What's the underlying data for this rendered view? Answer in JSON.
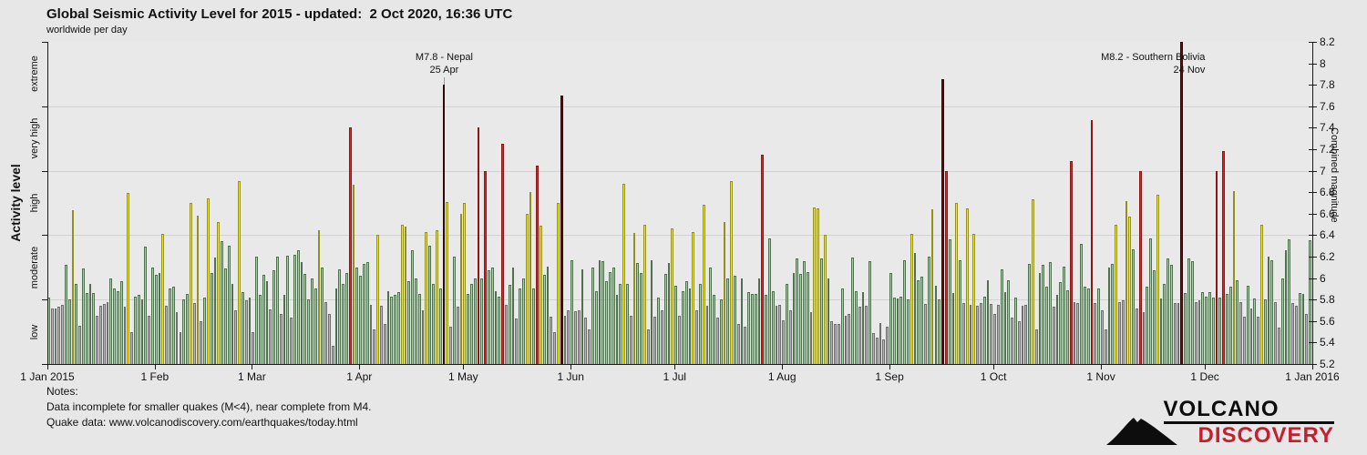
{
  "title": "Global Seismic Activity Level for 2015 - updated:  2 Oct 2020, 16:36 UTC",
  "subtitle": "worldwide per day",
  "notes": {
    "heading": "Notes:",
    "line1": "Data incomplete for smaller quakes (M<4), near complete from M4.",
    "line2": "Quake data: www.volcanodiscovery.com/earthquakes/today.html"
  },
  "logo": {
    "line1": "VOLCANO",
    "line2": "DISCOVERY"
  },
  "chart_data": {
    "type": "bar",
    "title": "Global Seismic Activity Level for 2015",
    "x_axis": {
      "labels": [
        "1 Jan 2015",
        "1 Feb",
        "1 Mar",
        "1 Apr",
        "1 May",
        "1 Jun",
        "1 Jul",
        "1 Aug",
        "1 Sep",
        "1 Oct",
        "1 Nov",
        "1 Dec",
        "1 Jan 2016"
      ],
      "tick_days": [
        0,
        31,
        59,
        90,
        120,
        151,
        181,
        212,
        243,
        273,
        304,
        334,
        365
      ]
    },
    "left_axis": {
      "title": "Activity level",
      "band_labels": [
        "low",
        "moderate",
        "high",
        "very high",
        "extreme"
      ]
    },
    "right_axis": {
      "title": "Combined magnitude",
      "min": 5.2,
      "max": 8.2,
      "tick_step": 0.2
    },
    "gridlines": [
      5.8,
      6.4,
      7.0,
      7.6
    ],
    "left_tick_values": [
      5.2,
      5.8,
      6.4,
      7.0,
      7.6,
      8.2
    ],
    "grid": true,
    "bands": [
      {
        "label": "low",
        "max": 5.8,
        "fill": "#b5b5b5",
        "border": "#6f6f6f"
      },
      {
        "label": "moderate",
        "max": 6.4,
        "fill": "#9cd89c",
        "border": "#507150"
      },
      {
        "label": "high",
        "max": 7.0,
        "fill": "#f4f000",
        "border": "#94901a"
      },
      {
        "label": "very high",
        "max": 7.6,
        "fill": "#e02525",
        "border": "#8c1616"
      },
      {
        "label": "extreme",
        "max": 8.2,
        "fill": "#5e1111",
        "border": "#2f0808"
      }
    ],
    "series_name": "combined magnitude per day",
    "values": [
      5.82,
      5.72,
      5.72,
      5.73,
      5.75,
      6.12,
      5.8,
      6.63,
      5.95,
      5.56,
      6.09,
      5.86,
      5.95,
      5.86,
      5.65,
      5.74,
      5.76,
      5.78,
      6.0,
      5.9,
      5.88,
      5.97,
      5.73,
      6.79,
      5.5,
      5.83,
      5.84,
      5.8,
      6.29,
      5.65,
      6.1,
      6.03,
      6.05,
      6.41,
      5.74,
      5.9,
      5.92,
      5.68,
      5.5,
      5.8,
      5.85,
      6.7,
      5.77,
      6.58,
      5.6,
      5.82,
      6.74,
      6.05,
      6.19,
      6.52,
      6.34,
      6.09,
      6.3,
      5.95,
      5.7,
      6.9,
      5.87,
      5.79,
      5.82,
      5.5,
      6.2,
      5.84,
      6.03,
      5.97,
      5.71,
      6.07,
      6.2,
      5.67,
      5.84,
      6.21,
      5.63,
      6.22,
      6.26,
      6.15,
      6.04,
      5.8,
      6.0,
      5.9,
      6.45,
      6.1,
      5.78,
      5.67,
      5.37,
      5.9,
      6.08,
      5.95,
      6.05,
      7.4,
      6.87,
      6.1,
      6.02,
      6.13,
      6.15,
      5.75,
      5.52,
      6.4,
      5.74,
      5.57,
      5.88,
      5.83,
      5.84,
      5.87,
      6.5,
      6.48,
      5.97,
      6.26,
      6.0,
      5.85,
      5.7,
      6.43,
      6.3,
      5.95,
      6.45,
      5.9,
      7.8,
      6.71,
      5.55,
      6.2,
      5.73,
      6.6,
      6.7,
      5.85,
      5.95,
      6.0,
      7.4,
      6.0,
      7.0,
      6.07,
      6.1,
      5.88,
      5.83,
      7.25,
      5.75,
      5.94,
      6.1,
      5.62,
      5.9,
      6.0,
      6.6,
      6.8,
      5.9,
      7.05,
      6.49,
      6.03,
      6.11,
      5.64,
      5.5,
      6.7,
      7.7,
      5.65,
      5.7,
      6.17,
      5.69,
      5.7,
      6.08,
      5.63,
      5.52,
      6.1,
      5.88,
      6.17,
      6.16,
      5.97,
      6.06,
      6.1,
      5.84,
      5.95,
      6.88,
      5.95,
      5.65,
      6.42,
      6.14,
      6.05,
      6.5,
      5.52,
      6.17,
      5.64,
      5.82,
      5.7,
      6.04,
      6.14,
      6.46,
      5.93,
      5.65,
      5.88,
      5.97,
      5.9,
      6.43,
      5.7,
      5.95,
      6.68,
      5.74,
      6.1,
      5.84,
      5.63,
      5.8,
      6.52,
      6.0,
      6.9,
      6.02,
      5.57,
      6.0,
      5.55,
      5.87,
      5.85,
      5.85,
      6.0,
      7.15,
      5.84,
      6.37,
      5.88,
      5.74,
      5.75,
      5.61,
      5.95,
      5.7,
      6.05,
      6.18,
      6.04,
      6.16,
      6.06,
      5.68,
      6.66,
      6.65,
      6.18,
      6.4,
      6.0,
      5.6,
      5.57,
      5.57,
      5.9,
      5.65,
      5.67,
      6.19,
      5.88,
      5.73,
      5.87,
      5.74,
      6.16,
      5.49,
      5.45,
      5.58,
      5.43,
      5.55,
      6.05,
      5.82,
      5.81,
      5.83,
      6.17,
      5.8,
      6.41,
      6.23,
      5.98,
      6.01,
      5.76,
      6.2,
      6.64,
      5.93,
      5.8,
      7.85,
      7.0,
      6.36,
      5.86,
      6.7,
      6.17,
      5.77,
      6.65,
      5.75,
      6.41,
      5.74,
      5.77,
      5.83,
      5.98,
      5.76,
      5.67,
      5.75,
      6.08,
      5.87,
      5.98,
      5.63,
      5.82,
      5.6,
      5.74,
      5.75,
      6.13,
      6.73,
      5.52,
      6.05,
      6.12,
      5.92,
      6.15,
      5.73,
      5.84,
      5.96,
      6.11,
      5.89,
      7.09,
      5.78,
      5.77,
      6.32,
      5.92,
      5.9,
      7.47,
      5.77,
      5.9,
      5.7,
      5.52,
      6.1,
      6.13,
      6.5,
      5.78,
      5.79,
      6.72,
      6.57,
      6.27,
      5.72,
      7.0,
      5.68,
      5.92,
      6.37,
      6.07,
      6.78,
      5.81,
      5.95,
      6.18,
      6.12,
      5.77,
      5.77,
      8.2,
      5.86,
      6.18,
      6.16,
      5.78,
      5.79,
      5.87,
      5.83,
      5.87,
      5.82,
      7.0,
      5.82,
      7.18,
      5.85,
      5.92,
      6.81,
      5.98,
      5.78,
      5.64,
      5.93,
      5.72,
      5.81,
      5.64,
      6.5,
      5.8,
      6.2,
      6.17,
      5.78,
      5.54,
      6.0,
      6.26,
      6.36,
      5.77,
      5.74,
      5.86,
      5.85,
      5.67,
      6.35
    ],
    "annotations": [
      {
        "line1": "M7.8 - Nepal",
        "line2": "25 Apr",
        "day": 115,
        "align": "center",
        "leader": true
      },
      {
        "line1": "M8.2 - Southern Bolivia",
        "line2": "24 Nov",
        "day": 328,
        "align": "right",
        "leader": false
      }
    ]
  }
}
